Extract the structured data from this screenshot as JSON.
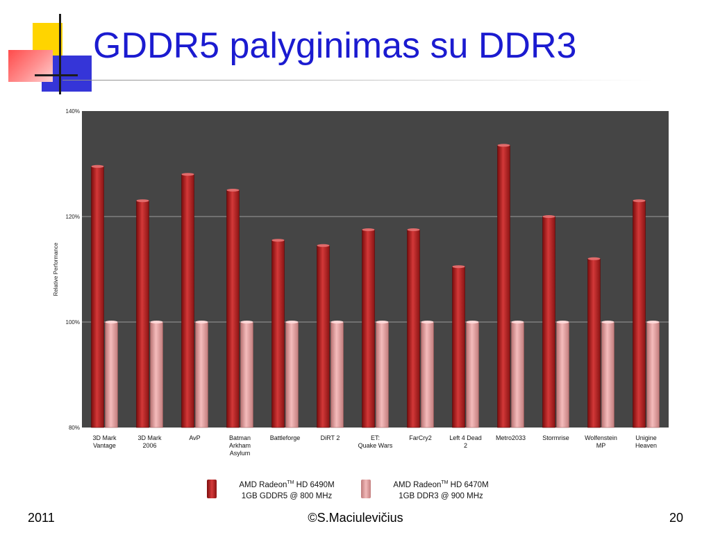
{
  "slide": {
    "title": "GDDR5 palyginimas su DDR3",
    "footer_left": "2011",
    "footer_center": "©S.Maciulevičius",
    "footer_right": "20"
  },
  "colors": {
    "title": "#1b1bd0",
    "plot_background": "#454545",
    "gddr5_bar": "#b51f1f",
    "ddr3_bar": "#e79f9f"
  },
  "legend": {
    "items": [
      {
        "brand": "AMD Radeon",
        "tm": "TM",
        "model": " HD 6490M",
        "spec": "1GB GDDR5 @ 800 MHz"
      },
      {
        "brand": "AMD Radeon",
        "tm": "TM",
        "model": " HD 6470M",
        "spec": "1GB DDR3 @ 900 MHz"
      }
    ]
  },
  "chart_data": {
    "type": "bar",
    "title": "",
    "xlabel": "",
    "ylabel": "Relative Performance",
    "ylim": [
      80,
      140
    ],
    "yticks": [
      "80%",
      "100%",
      "120%",
      "140%"
    ],
    "grid": true,
    "legend_position": "bottom",
    "categories": [
      [
        "3D Mark",
        "Vantage"
      ],
      [
        "3D Mark",
        "2006"
      ],
      [
        "AvP"
      ],
      [
        "Batman",
        "Arkham",
        "Asylum"
      ],
      [
        "Battleforge"
      ],
      [
        "DiRT 2"
      ],
      [
        "ET:",
        "Quake Wars"
      ],
      [
        "FarCry2"
      ],
      [
        "Left 4 Dead",
        "2"
      ],
      [
        "Metro2033"
      ],
      [
        "Stormrise"
      ],
      [
        "Wolfenstein",
        "MP"
      ],
      [
        "Unigine",
        "Heaven"
      ]
    ],
    "series": [
      {
        "name": "AMD Radeon™ HD 6490M 1GB GDDR5 @ 800 MHz",
        "values": [
          129.5,
          123,
          128,
          125,
          115.5,
          114.5,
          117.5,
          117.5,
          110.5,
          133.5,
          120,
          112,
          123
        ]
      },
      {
        "name": "AMD Radeon™ HD 6470M 1GB DDR3 @ 900 MHz",
        "values": [
          100,
          100,
          100,
          100,
          100,
          100,
          100,
          100,
          100,
          100,
          100,
          100,
          100
        ]
      }
    ]
  }
}
